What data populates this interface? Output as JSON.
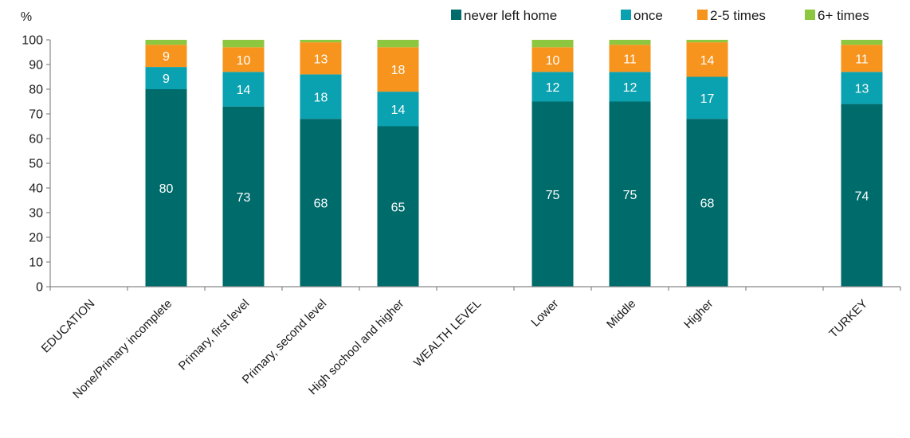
{
  "chart_data": {
    "type": "bar",
    "stacked": true,
    "ylabel": "%",
    "ylim": [
      0,
      100
    ],
    "yticks": [
      0,
      10,
      20,
      30,
      40,
      50,
      60,
      70,
      80,
      90,
      100
    ],
    "grid": false,
    "legend_position": "top-right",
    "categories": [
      "EDUCATION",
      "None/Primary incomplete",
      "Primary, first level",
      "Primary, second level",
      "High sochool and higher",
      "WEALTH LEVEL",
      "Lower",
      "Middle",
      "Higher",
      "",
      "TURKEY"
    ],
    "series": [
      {
        "name": "never left home",
        "color": "#006b6b",
        "values": [
          null,
          80,
          73,
          68,
          65,
          null,
          75,
          75,
          68,
          null,
          74
        ]
      },
      {
        "name": "once",
        "color": "#0aa1b0",
        "values": [
          null,
          9,
          14,
          18,
          14,
          null,
          12,
          12,
          17,
          null,
          13
        ]
      },
      {
        "name": "2-5 times",
        "color": "#f7941d",
        "values": [
          null,
          9,
          10,
          13,
          18,
          null,
          10,
          11,
          14,
          null,
          11
        ]
      },
      {
        "name": "6+ times",
        "color": "#8dc63f",
        "values": [
          null,
          2,
          3,
          1,
          3,
          null,
          3,
          2,
          1,
          null,
          2
        ]
      }
    ],
    "show_labels_for_series": [
      0,
      1,
      2
    ]
  }
}
